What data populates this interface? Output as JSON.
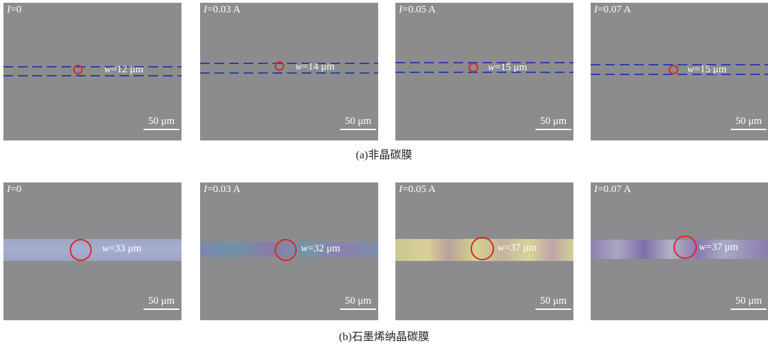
{
  "rows": [
    {
      "caption": "(a)非晶碳膜",
      "panels": [
        {
          "current": "=0",
          "width": "=12 μm",
          "scale": "50 μm"
        },
        {
          "current": "=0.03 A",
          "width": "=14 μm",
          "scale": "50 μm"
        },
        {
          "current": "=0.05 A",
          "width": "=15 μm",
          "scale": "50 μm"
        },
        {
          "current": "=0.07 A",
          "width": "=15 μm",
          "scale": "50 μm"
        }
      ]
    },
    {
      "caption": "(b)石墨烯纳晶碳膜",
      "panels": [
        {
          "current": "=0",
          "width": "=33 μm",
          "scale": "50 μm"
        },
        {
          "current": "=0.03 A",
          "width": "=32 μm",
          "scale": "50 μm"
        },
        {
          "current": "=0.05 A",
          "width": "=37 μm",
          "scale": "50 μm"
        },
        {
          "current": "=0.07 A",
          "width": "=37 μm",
          "scale": "50 μm"
        }
      ]
    }
  ],
  "symbols": {
    "current": "I",
    "width": "w"
  },
  "colors": {
    "background": "#8c8c8e",
    "guide_lines": "#2b3fa8",
    "circle": "#e0242a"
  }
}
